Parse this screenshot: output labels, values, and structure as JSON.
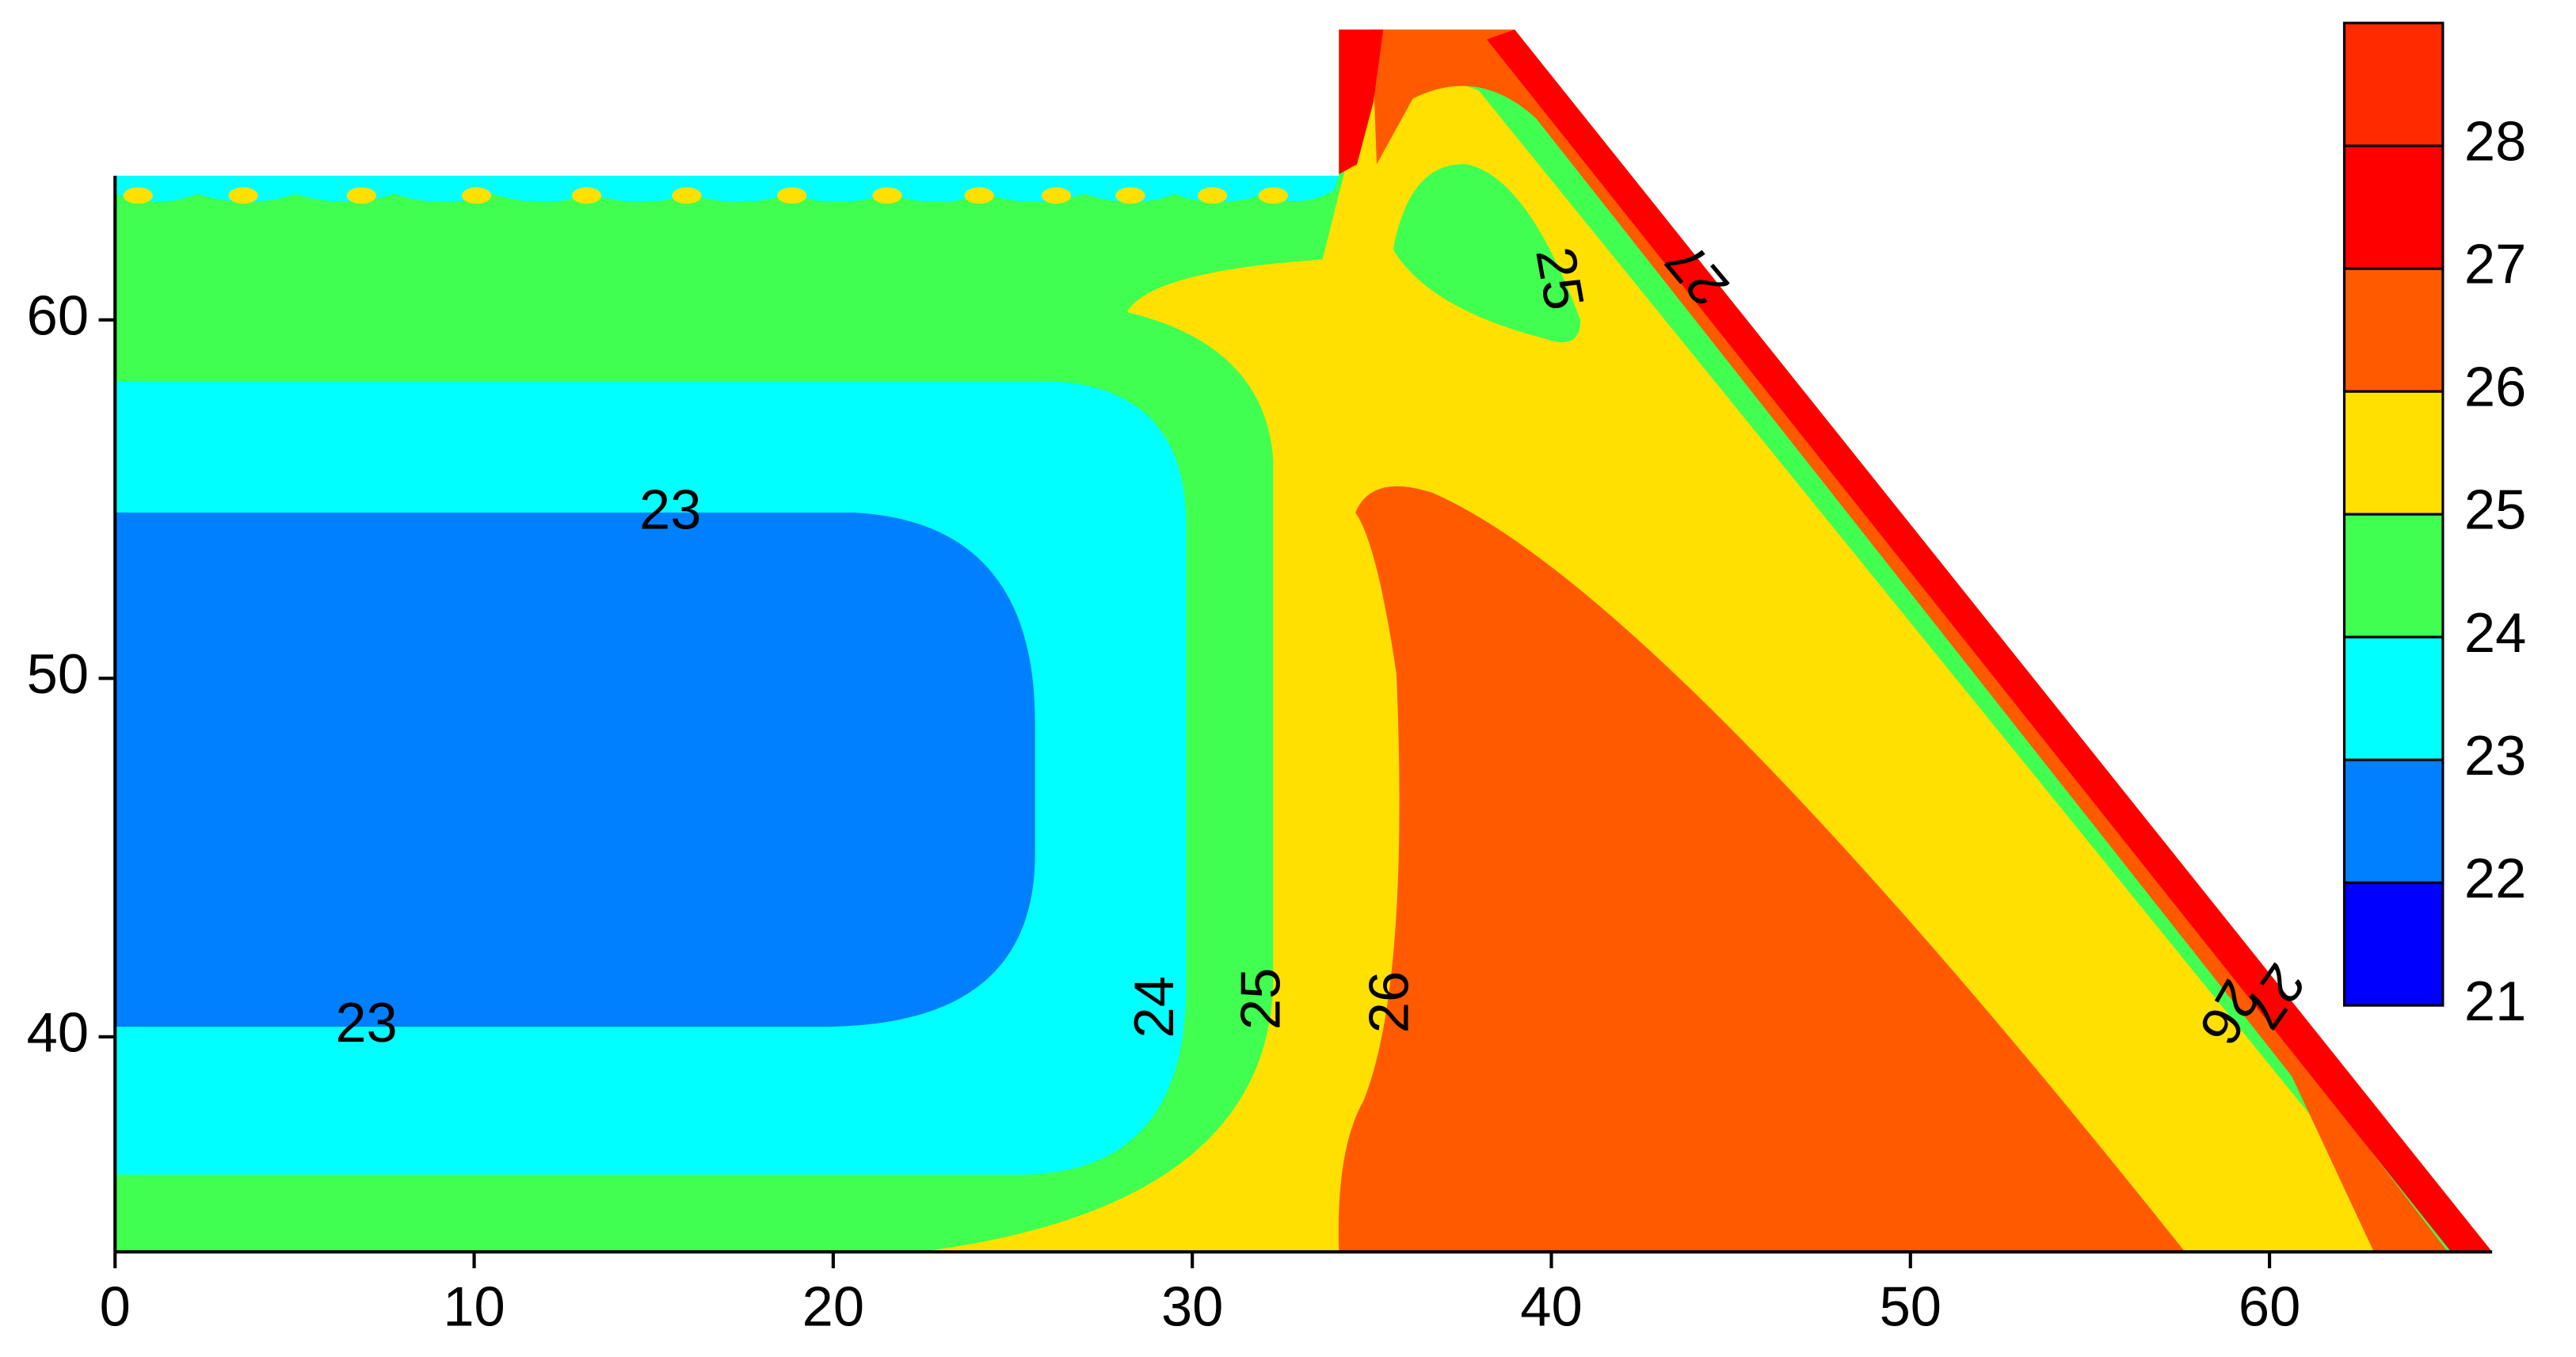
{
  "chart_data": {
    "type": "contour",
    "xlim": [
      0,
      66.2
    ],
    "ylim": [
      34,
      68.1
    ],
    "xticks": [
      0,
      10,
      20,
      30,
      40,
      50,
      60
    ],
    "yticks": [
      40,
      50,
      60
    ],
    "levels": [
      21,
      22,
      23,
      24,
      25,
      26,
      27,
      28,
      29
    ],
    "colors": [
      "#0000ff",
      "#0080ff",
      "#00ffff",
      "#40ff50",
      "#ffe000",
      "#ff5a00",
      "#ff0000",
      "#ff2a00"
    ],
    "colorbar_ticks": [
      21,
      22,
      23,
      24,
      25,
      26,
      27,
      28
    ],
    "contour_labels": [
      23,
      23,
      24,
      25,
      26,
      25,
      27,
      26,
      27
    ]
  }
}
